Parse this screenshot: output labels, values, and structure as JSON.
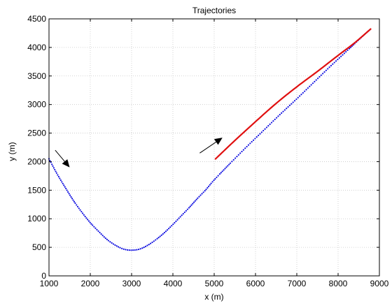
{
  "chart_data": {
    "type": "line",
    "title": "Trajectories",
    "xlabel": "x (m)",
    "ylabel": "y (m)",
    "xlim": [
      1000,
      9000
    ],
    "ylim": [
      0,
      4500
    ],
    "xticks": [
      1000,
      2000,
      3000,
      4000,
      5000,
      6000,
      7000,
      8000,
      9000
    ],
    "yticks": [
      0,
      500,
      1000,
      1500,
      2000,
      2500,
      3000,
      3500,
      4000,
      4500
    ],
    "grid": true,
    "series": [
      {
        "style": "dotted",
        "color": "#1010e0",
        "x": [
          1000,
          1200,
          1400,
          1600,
          1800,
          2000,
          2200,
          2400,
          2600,
          2800,
          3000,
          3200,
          3400,
          3600,
          3800,
          4000,
          4200,
          4400,
          4600,
          4800,
          5000,
          5400,
          5800,
          6200,
          6600,
          7000,
          7400,
          7800,
          8200,
          8600,
          8800
        ],
        "y": [
          2050,
          1780,
          1540,
          1310,
          1110,
          930,
          780,
          640,
          540,
          470,
          450,
          470,
          540,
          640,
          760,
          900,
          1050,
          1200,
          1360,
          1510,
          1680,
          1980,
          2270,
          2550,
          2830,
          3100,
          3380,
          3660,
          3930,
          4200,
          4330
        ]
      },
      {
        "style": "solid",
        "color": "#e01010",
        "x": [
          5020,
          5500,
          6000,
          6500,
          7000,
          7500,
          8000,
          8400,
          8800
        ],
        "y": [
          2040,
          2370,
          2700,
          3020,
          3310,
          3580,
          3860,
          4080,
          4330
        ]
      }
    ],
    "annotations": [
      {
        "type": "arrow",
        "color": "#000000",
        "from": [
          1150,
          2200
        ],
        "to": [
          1500,
          1900
        ]
      },
      {
        "type": "arrow",
        "color": "#000000",
        "from": [
          4650,
          2150
        ],
        "to": [
          5200,
          2420
        ]
      }
    ]
  }
}
